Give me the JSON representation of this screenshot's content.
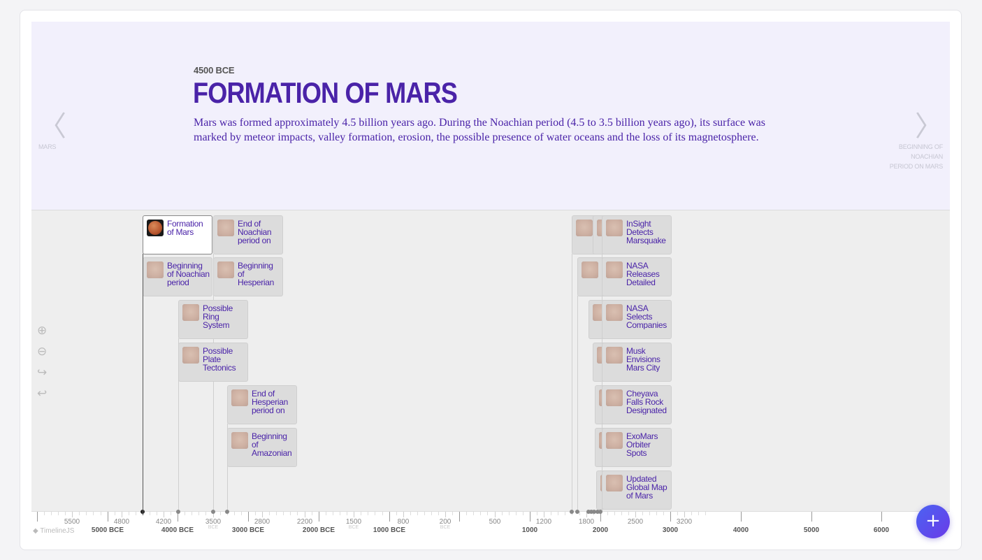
{
  "slide": {
    "date": "4500 BCE",
    "title": "FORMATION OF MARS",
    "text": "Mars was formed approximately 4.5 billion years ago. During the Noachian period (4.5 to 3.5 billion years ago), its surface was marked by meteor impacts, valley formation, erosion, the possible presence of water oceans and the loss of its magnetosphere."
  },
  "nav": {
    "prev_label": "MARS",
    "next_label": "BEGINNING OF NOACHIAN PERIOD ON MARS"
  },
  "markers": [
    {
      "label": "Formation of Mars"
    },
    {
      "label": "End of Noachian period on Mars"
    },
    {
      "label": "Beginning of Noachian period"
    },
    {
      "label": "Beginning of Hesperian period"
    },
    {
      "label": "Possible Ring System"
    },
    {
      "label": "Possible Plate Tectonics"
    },
    {
      "label": "End of Hesperian period on Mars"
    },
    {
      "label": "Beginning of Amazonian period"
    },
    {
      "label": "InSight Detects Marsquake"
    },
    {
      "label": "NASA Releases Detailed Map"
    },
    {
      "label": "NASA Selects Companies"
    },
    {
      "label": "Musk Envisions Mars City"
    },
    {
      "label": "Cheyava Falls Rock Designated"
    },
    {
      "label": "ExoMars Orbiter Spots Spiders"
    },
    {
      "label": "Updated Global Map of Mars"
    }
  ],
  "axis": {
    "major": [
      "5000 BCE",
      "4000 BCE",
      "3000 BCE",
      "2000 BCE",
      "1000 BCE",
      "1000",
      "2000",
      "3000",
      "4000",
      "5000",
      "6000"
    ],
    "minor": [
      "5500",
      "4800",
      "4200",
      "3500",
      "2800",
      "2200",
      "1500",
      "800",
      "200",
      "500",
      "1200",
      "1800",
      "2500",
      "3200"
    ],
    "era": "BCE"
  },
  "brand": "TimelineJS",
  "fab_label": "+"
}
